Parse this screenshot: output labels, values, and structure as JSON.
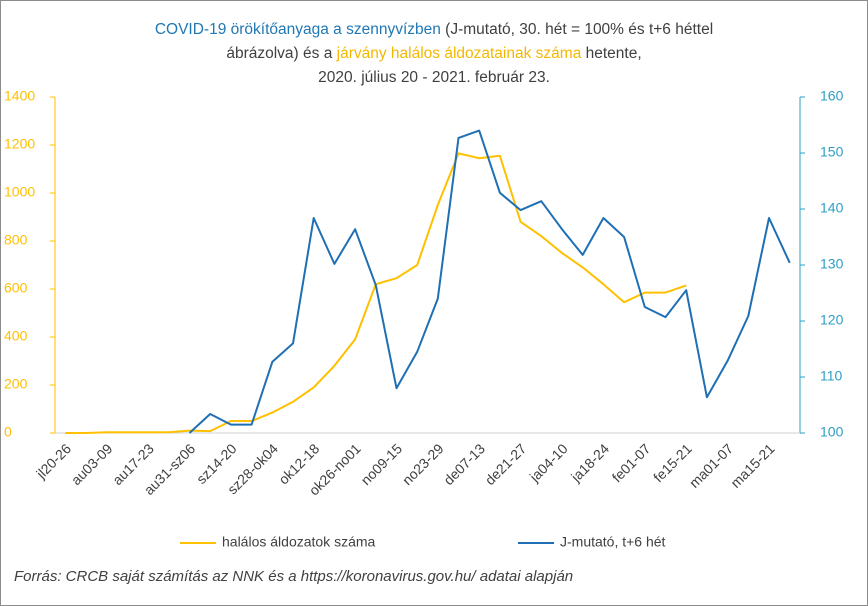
{
  "chart_data": {
    "type": "line",
    "title_lines": [
      [
        {
          "text": "COVID-19 örökítőanyaga a szennyvízben",
          "color": "#1f77b4"
        },
        {
          "text": " (J-mutató, 30. hét = 100% és t+6 héttel",
          "color": "#404040"
        }
      ],
      [
        {
          "text": "ábrázolva) és a ",
          "color": "#404040"
        },
        {
          "text": "járvány halálos áldozatainak száma",
          "color": "#f5b800"
        },
        {
          "text": " hetente,",
          "color": "#404040"
        }
      ],
      [
        {
          "text": "2020. július 20 - 2021. február 23.",
          "color": "#404040"
        }
      ]
    ],
    "categories": [
      "jl20-26",
      null,
      "au03-09",
      null,
      "au17-23",
      null,
      "au31-sz06",
      null,
      "sz14-20",
      null,
      "sz28-ok04",
      null,
      "ok12-18",
      null,
      "ok26-no01",
      null,
      "no09-15",
      null,
      "no23-29",
      null,
      "de07-13",
      null,
      "de21-27",
      null,
      "ja04-10",
      null,
      "ja18-24",
      null,
      "fe01-07",
      null,
      "fe15-21",
      null,
      "ma01-07",
      null,
      "ma15-21",
      null
    ],
    "series": [
      {
        "name": "halálos áldozatok száma",
        "color": "#ffc000",
        "axis": "y",
        "values": [
          0,
          0,
          3,
          3,
          3,
          3,
          10,
          8,
          50,
          50,
          85,
          130,
          190,
          280,
          390,
          620,
          645,
          700,
          950,
          1165,
          1145,
          1155,
          880,
          820,
          750,
          690,
          620,
          545,
          585,
          585,
          615,
          null,
          null,
          null,
          null,
          null
        ]
      },
      {
        "name": "J-mutató, t+6 hét",
        "color": "#1f6fb4",
        "axis": "y2",
        "values": [
          null,
          null,
          null,
          null,
          null,
          null,
          100,
          103.4,
          101.5,
          101.5,
          112.7,
          116,
          138.4,
          130.2,
          136.4,
          126.4,
          108,
          114.5,
          124,
          152.7,
          154,
          142.9,
          139.8,
          141.4,
          136.4,
          131.8,
          138.4,
          135,
          122.5,
          120.7,
          125.5,
          106.4,
          112.9,
          120.9,
          138.4,
          130.4
        ]
      }
    ],
    "ylim": [
      0,
      1400
    ],
    "yticks": [
      0,
      200,
      400,
      600,
      800,
      1000,
      1200,
      1400
    ],
    "y_axis_color": "#ffc000",
    "y2lim": [
      100,
      160
    ],
    "y2ticks": [
      100,
      110,
      120,
      130,
      140,
      150,
      160
    ],
    "y2_axis_color": "#2e9fc4",
    "source": "Forrás: CRCB saját számítás az NNK és a https://koronavirus.gov.hu/ adatai alapján"
  }
}
